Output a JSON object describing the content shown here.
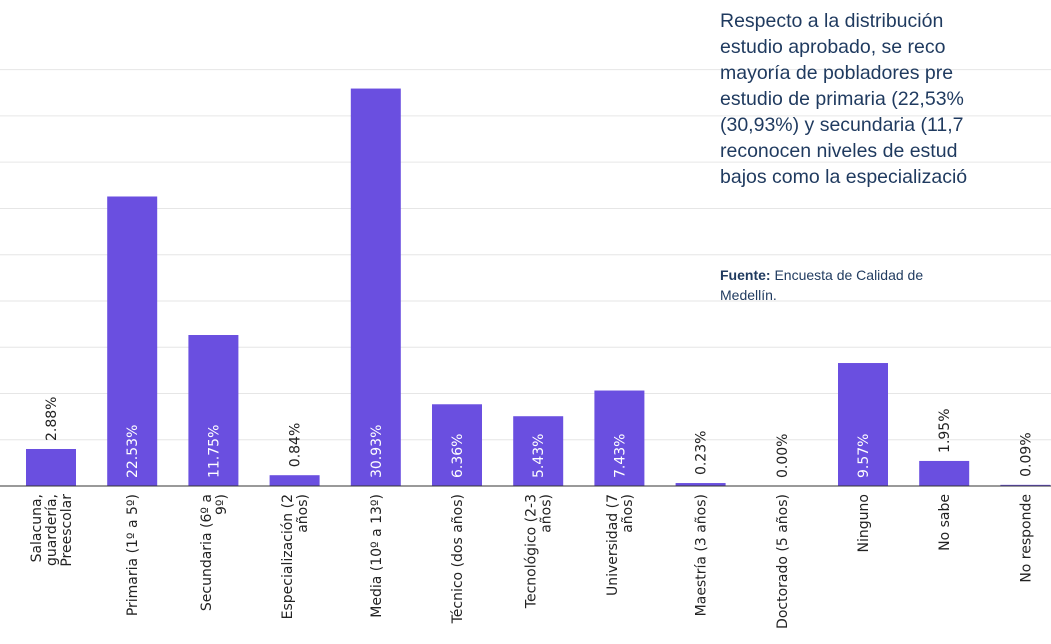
{
  "chart_data": {
    "type": "bar",
    "categories": [
      [
        "Salacuna,",
        "guardería,",
        "Preescolar"
      ],
      [
        "Primaria (1º a 5º)"
      ],
      [
        "Secundaria (6º a",
        "9º)"
      ],
      [
        "Especialización (2",
        "años)"
      ],
      [
        "Media (10º a 13º)"
      ],
      [
        "Técnico (dos años)"
      ],
      [
        "Tecnológico (2-3",
        "años)"
      ],
      [
        "Universidad (7",
        "años)"
      ],
      [
        "Maestría (3 años)"
      ],
      [
        "Doctorado (5 años)"
      ],
      [
        "Ninguno"
      ],
      [
        "No sabe"
      ],
      [
        "No responde"
      ]
    ],
    "values": [
      2.88,
      22.53,
      11.75,
      0.84,
      30.93,
      6.36,
      5.43,
      7.43,
      0.23,
      0.0,
      9.57,
      1.95,
      0.09
    ],
    "data_labels": [
      "2.88%",
      "22.53%",
      "11.75%",
      "0.84%",
      "30.93%",
      "6.36%",
      "5.43%",
      "7.43%",
      "0.23%",
      "0.00%",
      "9.57%",
      "1.95%",
      "0.09%"
    ],
    "ylim": [
      0,
      35
    ],
    "grid": true,
    "bar_color": "#6a4fe0",
    "gridline_color": "#e6e6e6",
    "title": "",
    "xlabel": "",
    "ylabel": ""
  },
  "text": {
    "paragraph_lines": [
      "Respecto a la distribución",
      "estudio aprobado, se reco",
      "mayoría de pobladores pre",
      "estudio de primaria (22,53%",
      "(30,93%) y secundaria (11,7",
      "reconocen niveles de estud",
      "bajos como la especializació"
    ],
    "source_label": "Fuente:",
    "source_text": "Encuesta de Calidad de",
    "source_line2": "Medellín."
  }
}
